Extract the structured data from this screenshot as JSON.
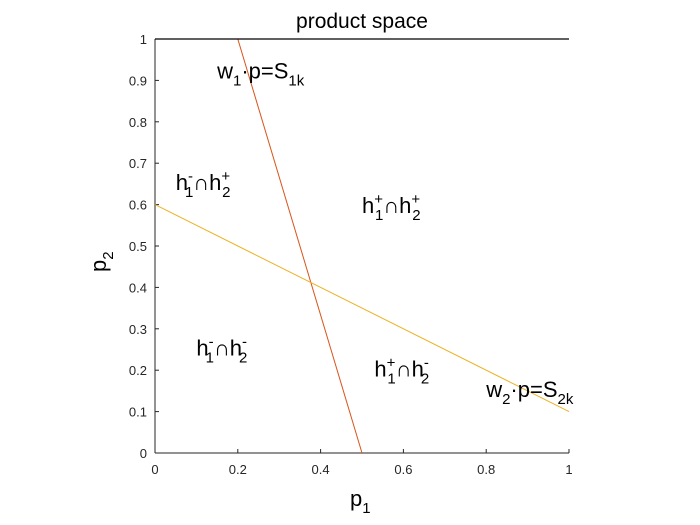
{
  "chart_data": {
    "type": "line",
    "title": "product space",
    "xlabel": {
      "main": "p",
      "sub": "1"
    },
    "ylabel": {
      "main": "p",
      "sub": "2"
    },
    "xlim": [
      0,
      1
    ],
    "ylim": [
      0,
      1
    ],
    "xticks": [
      0,
      0.2,
      0.4,
      0.6,
      0.8,
      1
    ],
    "xtick_labels": [
      "0",
      "0.2",
      "0.4",
      "0.6",
      "0.8",
      "1"
    ],
    "yticks": [
      0,
      0.1,
      0.2,
      0.3,
      0.4,
      0.5,
      0.6,
      0.7,
      0.8,
      0.9,
      1
    ],
    "ytick_labels": [
      "0",
      "0.1",
      "0.2",
      "0.3",
      "0.4",
      "0.5",
      "0.6",
      "0.7",
      "0.8",
      "0.9",
      "1"
    ],
    "grid": false,
    "series": [
      {
        "color": "#d95319",
        "x": [
          0.2,
          0.5
        ],
        "y": [
          1,
          0
        ]
      },
      {
        "color": "#edb120",
        "x": [
          0,
          1
        ],
        "y": [
          0.6,
          0.1
        ]
      },
      {
        "color": "#000000",
        "x": [
          0,
          1
        ],
        "y": [
          1,
          1
        ]
      }
    ],
    "annotations": [
      {
        "id": "w1-label",
        "x": 0.15,
        "y": 0.905,
        "parts": [
          {
            "text": "w",
            "shift": "base"
          },
          {
            "text": "1",
            "shift": "sub"
          },
          {
            "text": "·p=S",
            "shift": "base"
          },
          {
            "text": "1k",
            "shift": "sub"
          }
        ]
      },
      {
        "id": "w2-label",
        "x": 0.8,
        "y": 0.135,
        "parts": [
          {
            "text": "w",
            "shift": "base"
          },
          {
            "text": "2",
            "shift": "sub"
          },
          {
            "text": "·p=S",
            "shift": "base"
          },
          {
            "text": "2k",
            "shift": "sub"
          }
        ]
      },
      {
        "id": "region-h1-minus-h2-plus",
        "x": 0.05,
        "y": 0.635,
        "parts": [
          {
            "text": "h",
            "shift": "base"
          },
          {
            "text": "-",
            "shift": "sup"
          },
          {
            "text": "1",
            "shift": "sub-after-sup"
          },
          {
            "text": "∩h",
            "shift": "base"
          },
          {
            "text": "+",
            "shift": "sup"
          },
          {
            "text": "2",
            "shift": "sub-after-sup"
          }
        ]
      },
      {
        "id": "region-h1-plus-h2-plus",
        "x": 0.5,
        "y": 0.58,
        "parts": [
          {
            "text": "h",
            "shift": "base"
          },
          {
            "text": "+",
            "shift": "sup"
          },
          {
            "text": "1",
            "shift": "sub-after-sup"
          },
          {
            "text": "∩h",
            "shift": "base"
          },
          {
            "text": "+",
            "shift": "sup"
          },
          {
            "text": "2",
            "shift": "sub-after-sup"
          }
        ]
      },
      {
        "id": "region-h1-minus-h2-minus",
        "x": 0.1,
        "y": 0.235,
        "parts": [
          {
            "text": "h",
            "shift": "base"
          },
          {
            "text": "-",
            "shift": "sup"
          },
          {
            "text": "1",
            "shift": "sub-after-sup"
          },
          {
            "text": "∩h",
            "shift": "base"
          },
          {
            "text": "-",
            "shift": "sup"
          },
          {
            "text": "2",
            "shift": "sub-after-sup"
          }
        ]
      },
      {
        "id": "region-h1-plus-h2-minus",
        "x": 0.53,
        "y": 0.185,
        "parts": [
          {
            "text": "h",
            "shift": "base"
          },
          {
            "text": "+",
            "shift": "sup"
          },
          {
            "text": "1",
            "shift": "sub-after-sup"
          },
          {
            "text": "∩h",
            "shift": "base"
          },
          {
            "text": "-",
            "shift": "sup"
          },
          {
            "text": "2",
            "shift": "sub-after-sup"
          }
        ]
      }
    ]
  }
}
